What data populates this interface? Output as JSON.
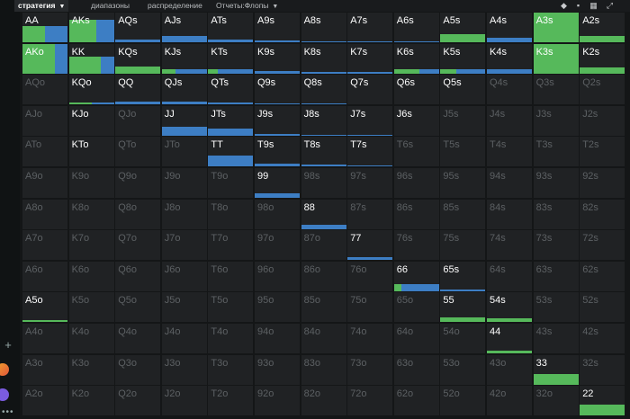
{
  "tabs": [
    {
      "label": "стратегия",
      "active": true,
      "dropdown": true
    },
    {
      "label": "диапазоны",
      "active": false,
      "dropdown": false
    },
    {
      "label": "распределение",
      "active": false,
      "dropdown": false
    },
    {
      "label": "Отчеты:Флопы",
      "active": false,
      "dropdown": true
    }
  ],
  "toolbar_icons": [
    "cube-icon",
    "layers-icon",
    "grid-icon",
    "expand-icon"
  ],
  "colors": {
    "green": "#56b95b",
    "blue": "#3d7ec4",
    "cell": "#202224",
    "active_text": "#ffffff",
    "inactive_text": "#5c6063"
  },
  "matrix": {
    "ranks": [
      "A",
      "K",
      "Q",
      "J",
      "T",
      "9",
      "8",
      "7",
      "6",
      "5",
      "4",
      "3",
      "2"
    ],
    "hands": [
      [
        "AA",
        "AKs",
        "AQs",
        "AJs",
        "ATs",
        "A9s",
        "A8s",
        "A7s",
        "A6s",
        "A5s",
        "A4s",
        "A3s",
        "A2s"
      ],
      [
        "AKo",
        "KK",
        "KQs",
        "KJs",
        "KTs",
        "K9s",
        "K8s",
        "K7s",
        "K6s",
        "K5s",
        "K4s",
        "K3s",
        "K2s"
      ],
      [
        "AQo",
        "KQo",
        "QQ",
        "QJs",
        "QTs",
        "Q9s",
        "Q8s",
        "Q7s",
        "Q6s",
        "Q5s",
        "Q4s",
        "Q3s",
        "Q2s"
      ],
      [
        "AJo",
        "KJo",
        "QJo",
        "JJ",
        "JTs",
        "J9s",
        "J8s",
        "J7s",
        "J6s",
        "J5s",
        "J4s",
        "J3s",
        "J2s"
      ],
      [
        "ATo",
        "KTo",
        "QTo",
        "JTo",
        "TT",
        "T9s",
        "T8s",
        "T7s",
        "T6s",
        "T5s",
        "T4s",
        "T3s",
        "T2s"
      ],
      [
        "A9o",
        "K9o",
        "Q9o",
        "J9o",
        "T9o",
        "99",
        "98s",
        "97s",
        "96s",
        "95s",
        "94s",
        "93s",
        "92s"
      ],
      [
        "A8o",
        "K8o",
        "Q8o",
        "J8o",
        "T8o",
        "98o",
        "88",
        "87s",
        "86s",
        "85s",
        "84s",
        "83s",
        "82s"
      ],
      [
        "A7o",
        "K7o",
        "Q7o",
        "J7o",
        "T7o",
        "97o",
        "87o",
        "77",
        "76s",
        "75s",
        "74s",
        "73s",
        "72s"
      ],
      [
        "A6o",
        "K6o",
        "Q6o",
        "J6o",
        "T6o",
        "96o",
        "86o",
        "76o",
        "66",
        "65s",
        "64s",
        "63s",
        "62s"
      ],
      [
        "A5o",
        "K5o",
        "Q5o",
        "J5o",
        "T5o",
        "95o",
        "85o",
        "75o",
        "65o",
        "55",
        "54s",
        "53s",
        "52s"
      ],
      [
        "A4o",
        "K4o",
        "Q4o",
        "J4o",
        "T4o",
        "94o",
        "84o",
        "74o",
        "64o",
        "54o",
        "44",
        "43s",
        "42s"
      ],
      [
        "A3o",
        "K3o",
        "Q3o",
        "J3o",
        "T3o",
        "93o",
        "83o",
        "73o",
        "63o",
        "53o",
        "43o",
        "33",
        "32s"
      ],
      [
        "A2o",
        "K2o",
        "Q2o",
        "J2o",
        "T2o",
        "92o",
        "82o",
        "72o",
        "62o",
        "52o",
        "42o",
        "32o",
        "22"
      ]
    ],
    "active": [
      [
        1,
        1,
        1,
        1,
        1,
        1,
        1,
        1,
        1,
        1,
        1,
        1,
        1
      ],
      [
        1,
        1,
        1,
        1,
        1,
        1,
        1,
        1,
        1,
        1,
        1,
        1,
        1
      ],
      [
        0,
        1,
        1,
        1,
        1,
        1,
        1,
        1,
        1,
        1,
        0,
        0,
        0
      ],
      [
        0,
        1,
        0,
        1,
        1,
        1,
        1,
        1,
        1,
        0,
        0,
        0,
        0
      ],
      [
        0,
        1,
        0,
        0,
        1,
        1,
        1,
        1,
        0,
        0,
        0,
        0,
        0
      ],
      [
        0,
        0,
        0,
        0,
        0,
        1,
        0,
        0,
        0,
        0,
        0,
        0,
        0
      ],
      [
        0,
        0,
        0,
        0,
        0,
        0,
        1,
        0,
        0,
        0,
        0,
        0,
        0
      ],
      [
        0,
        0,
        0,
        0,
        0,
        0,
        0,
        1,
        0,
        0,
        0,
        0,
        0
      ],
      [
        0,
        0,
        0,
        0,
        0,
        0,
        0,
        0,
        1,
        1,
        0,
        0,
        0
      ],
      [
        1,
        0,
        0,
        0,
        0,
        0,
        0,
        0,
        0,
        1,
        1,
        0,
        0
      ],
      [
        0,
        0,
        0,
        0,
        0,
        0,
        0,
        0,
        0,
        0,
        1,
        0,
        0
      ],
      [
        0,
        0,
        0,
        0,
        0,
        0,
        0,
        0,
        0,
        0,
        0,
        1,
        0
      ],
      [
        0,
        0,
        0,
        0,
        0,
        0,
        0,
        0,
        0,
        0,
        0,
        0,
        1
      ]
    ],
    "strategy": [
      {
        "r": 0,
        "c": 0,
        "height": 0.55,
        "parts": [
          {
            "color": "green",
            "frac": 0.5
          },
          {
            "color": "blue",
            "frac": 0.5
          }
        ]
      },
      {
        "r": 0,
        "c": 1,
        "height": 0.75,
        "parts": [
          {
            "color": "green",
            "frac": 0.6
          },
          {
            "color": "blue",
            "frac": 0.4
          }
        ]
      },
      {
        "r": 0,
        "c": 2,
        "height": 0.08,
        "parts": [
          {
            "color": "blue",
            "frac": 1
          }
        ]
      },
      {
        "r": 0,
        "c": 3,
        "height": 0.22,
        "parts": [
          {
            "color": "blue",
            "frac": 1
          }
        ]
      },
      {
        "r": 0,
        "c": 4,
        "height": 0.1,
        "parts": [
          {
            "color": "blue",
            "frac": 1
          }
        ]
      },
      {
        "r": 0,
        "c": 5,
        "height": 0.06,
        "parts": [
          {
            "color": "blue",
            "frac": 1
          }
        ]
      },
      {
        "r": 0,
        "c": 6,
        "height": 0.03,
        "parts": [
          {
            "color": "blue",
            "frac": 1
          }
        ]
      },
      {
        "r": 0,
        "c": 7,
        "height": 0.03,
        "parts": [
          {
            "color": "blue",
            "frac": 1
          }
        ]
      },
      {
        "r": 0,
        "c": 8,
        "height": 0.03,
        "parts": [
          {
            "color": "blue",
            "frac": 1
          }
        ]
      },
      {
        "r": 0,
        "c": 9,
        "height": 0.28,
        "parts": [
          {
            "color": "green",
            "frac": 1
          }
        ]
      },
      {
        "r": 0,
        "c": 10,
        "height": 0.16,
        "parts": [
          {
            "color": "blue",
            "frac": 1
          }
        ]
      },
      {
        "r": 0,
        "c": 11,
        "height": 1.0,
        "parts": [
          {
            "color": "green",
            "frac": 1
          }
        ]
      },
      {
        "r": 0,
        "c": 12,
        "height": 0.22,
        "parts": [
          {
            "color": "green",
            "frac": 1
          }
        ]
      },
      {
        "r": 1,
        "c": 0,
        "height": 1.0,
        "parts": [
          {
            "color": "green",
            "frac": 0.72
          },
          {
            "color": "blue",
            "frac": 0.28
          }
        ]
      },
      {
        "r": 1,
        "c": 1,
        "height": 0.58,
        "parts": [
          {
            "color": "green",
            "frac": 0.7
          },
          {
            "color": "blue",
            "frac": 0.3
          }
        ]
      },
      {
        "r": 1,
        "c": 2,
        "height": 0.25,
        "parts": [
          {
            "color": "green",
            "frac": 1
          }
        ]
      },
      {
        "r": 1,
        "c": 3,
        "height": 0.16,
        "parts": [
          {
            "color": "green",
            "frac": 0.3
          },
          {
            "color": "blue",
            "frac": 0.7
          }
        ]
      },
      {
        "r": 1,
        "c": 4,
        "height": 0.16,
        "parts": [
          {
            "color": "green",
            "frac": 0.22
          },
          {
            "color": "blue",
            "frac": 0.78
          }
        ]
      },
      {
        "r": 1,
        "c": 5,
        "height": 0.1,
        "parts": [
          {
            "color": "blue",
            "frac": 1
          }
        ]
      },
      {
        "r": 1,
        "c": 6,
        "height": 0.06,
        "parts": [
          {
            "color": "blue",
            "frac": 1
          }
        ]
      },
      {
        "r": 1,
        "c": 7,
        "height": 0.06,
        "parts": [
          {
            "color": "blue",
            "frac": 1
          }
        ]
      },
      {
        "r": 1,
        "c": 8,
        "height": 0.16,
        "parts": [
          {
            "color": "green",
            "frac": 0.55
          },
          {
            "color": "blue",
            "frac": 0.45
          }
        ]
      },
      {
        "r": 1,
        "c": 9,
        "height": 0.16,
        "parts": [
          {
            "color": "green",
            "frac": 0.35
          },
          {
            "color": "blue",
            "frac": 0.65
          }
        ]
      },
      {
        "r": 1,
        "c": 10,
        "height": 0.16,
        "parts": [
          {
            "color": "blue",
            "frac": 1
          }
        ]
      },
      {
        "r": 1,
        "c": 11,
        "height": 1.0,
        "parts": [
          {
            "color": "green",
            "frac": 1
          }
        ]
      },
      {
        "r": 1,
        "c": 12,
        "height": 0.22,
        "parts": [
          {
            "color": "green",
            "frac": 1
          }
        ]
      },
      {
        "r": 2,
        "c": 1,
        "height": 0.06,
        "parts": [
          {
            "color": "green",
            "frac": 0.5
          },
          {
            "color": "blue",
            "frac": 0.5
          }
        ]
      },
      {
        "r": 2,
        "c": 2,
        "height": 0.1,
        "parts": [
          {
            "color": "blue",
            "frac": 1
          }
        ]
      },
      {
        "r": 2,
        "c": 3,
        "height": 0.08,
        "parts": [
          {
            "color": "blue",
            "frac": 1
          }
        ]
      },
      {
        "r": 2,
        "c": 4,
        "height": 0.06,
        "parts": [
          {
            "color": "blue",
            "frac": 1
          }
        ]
      },
      {
        "r": 2,
        "c": 5,
        "height": 0.04,
        "parts": [
          {
            "color": "blue",
            "frac": 1
          }
        ]
      },
      {
        "r": 2,
        "c": 6,
        "height": 0.03,
        "parts": [
          {
            "color": "blue",
            "frac": 1
          }
        ]
      },
      {
        "r": 3,
        "c": 3,
        "height": 0.3,
        "parts": [
          {
            "color": "blue",
            "frac": 1
          }
        ]
      },
      {
        "r": 3,
        "c": 4,
        "height": 0.25,
        "parts": [
          {
            "color": "blue",
            "frac": 1
          }
        ]
      },
      {
        "r": 3,
        "c": 5,
        "height": 0.06,
        "parts": [
          {
            "color": "blue",
            "frac": 1
          }
        ]
      },
      {
        "r": 3,
        "c": 6,
        "height": 0.03,
        "parts": [
          {
            "color": "blue",
            "frac": 1
          }
        ]
      },
      {
        "r": 3,
        "c": 7,
        "height": 0.03,
        "parts": [
          {
            "color": "blue",
            "frac": 1
          }
        ]
      },
      {
        "r": 4,
        "c": 4,
        "height": 0.35,
        "parts": [
          {
            "color": "blue",
            "frac": 1
          }
        ]
      },
      {
        "r": 4,
        "c": 5,
        "height": 0.1,
        "parts": [
          {
            "color": "blue",
            "frac": 1
          }
        ]
      },
      {
        "r": 4,
        "c": 6,
        "height": 0.06,
        "parts": [
          {
            "color": "blue",
            "frac": 1
          }
        ]
      },
      {
        "r": 4,
        "c": 7,
        "height": 0.03,
        "parts": [
          {
            "color": "blue",
            "frac": 1
          }
        ]
      },
      {
        "r": 5,
        "c": 5,
        "height": 0.16,
        "parts": [
          {
            "color": "blue",
            "frac": 1
          }
        ]
      },
      {
        "r": 6,
        "c": 6,
        "height": 0.16,
        "parts": [
          {
            "color": "blue",
            "frac": 1
          }
        ]
      },
      {
        "r": 7,
        "c": 7,
        "height": 0.1,
        "parts": [
          {
            "color": "blue",
            "frac": 1
          }
        ]
      },
      {
        "r": 8,
        "c": 8,
        "height": 0.25,
        "parts": [
          {
            "color": "green",
            "frac": 0.15
          },
          {
            "color": "blue",
            "frac": 0.85
          }
        ]
      },
      {
        "r": 8,
        "c": 9,
        "height": 0.06,
        "parts": [
          {
            "color": "blue",
            "frac": 1
          }
        ]
      },
      {
        "r": 9,
        "c": 0,
        "height": 0.05,
        "parts": [
          {
            "color": "green",
            "frac": 1
          }
        ]
      },
      {
        "r": 9,
        "c": 9,
        "height": 0.16,
        "parts": [
          {
            "color": "green",
            "frac": 1
          }
        ]
      },
      {
        "r": 9,
        "c": 10,
        "height": 0.13,
        "parts": [
          {
            "color": "green",
            "frac": 1
          }
        ]
      },
      {
        "r": 10,
        "c": 10,
        "height": 0.1,
        "parts": [
          {
            "color": "green",
            "frac": 1
          }
        ]
      },
      {
        "r": 11,
        "c": 11,
        "height": 0.35,
        "parts": [
          {
            "color": "green",
            "frac": 1
          }
        ]
      },
      {
        "r": 12,
        "c": 12,
        "height": 0.35,
        "parts": [
          {
            "color": "green",
            "frac": 1
          }
        ]
      }
    ]
  }
}
